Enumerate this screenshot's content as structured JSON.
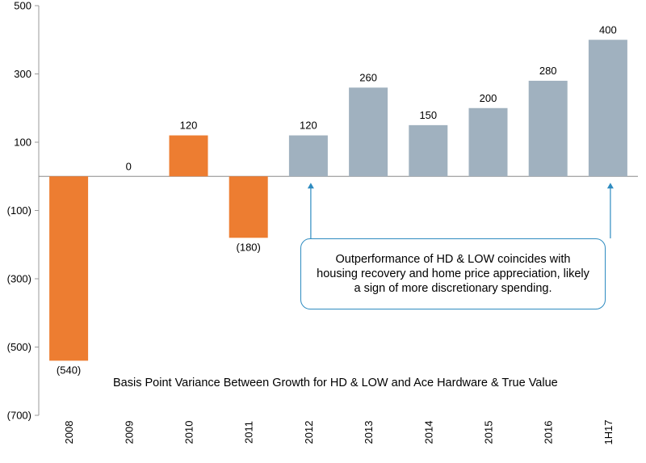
{
  "chart_data": {
    "type": "bar",
    "title": "Basis Point Variance Between Growth for HD & LOW and Ace Hardware & True Value",
    "categories": [
      "2008",
      "2009",
      "2010",
      "2011",
      "2012",
      "2013",
      "2014",
      "2015",
      "2016",
      "1H17"
    ],
    "values": [
      -540,
      0,
      120,
      -180,
      120,
      260,
      150,
      200,
      280,
      400
    ],
    "data_labels": [
      "(540)",
      "0",
      "120",
      "(180)",
      "120",
      "260",
      "150",
      "200",
      "280",
      "400"
    ],
    "bar_colors": [
      "#ed7d31",
      "#ed7d31",
      "#ed7d31",
      "#ed7d31",
      "#a0b1bf",
      "#a0b1bf",
      "#a0b1bf",
      "#a0b1bf",
      "#a0b1bf",
      "#a0b1bf"
    ],
    "ylim": [
      -700,
      500
    ],
    "yticks": [
      500,
      300,
      100,
      -100,
      -300,
      -500,
      -700
    ],
    "ytick_labels": [
      "500",
      "300",
      "100",
      "(100)",
      "(300)",
      "(500)",
      "(700)"
    ],
    "xlabel": "",
    "ylabel": "",
    "grid": false,
    "annotation": {
      "text": "Outperformance of HD & LOW coincides with housing recovery and home price appreciation, likely a sign of more discretionary spending.",
      "arrows_to": [
        "2012",
        "1H17"
      ],
      "border_color": "#2e8bc0"
    }
  }
}
